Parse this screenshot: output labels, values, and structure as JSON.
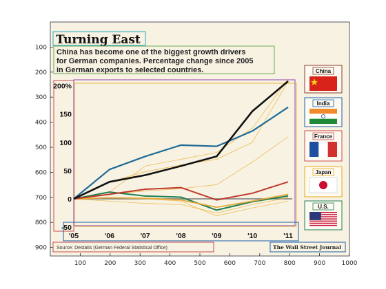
{
  "title": "Turning East",
  "subtitle_lines": [
    "China has become one of the biggest growth drivers",
    "for German companies. Percentage change since 2005",
    "in German exports to selected countries."
  ],
  "source": "Source: Destatis (German Federal Statistical Office)",
  "credit": "The Wall Street Journal",
  "colors": {
    "background": "#f8f2e3",
    "china": "#111111",
    "india": "#1d6a96",
    "france": "#c0392b",
    "japan": "#e3a93b",
    "us": "#1e7f4e",
    "zero_line": "#777777",
    "annotation_boxes": [
      "#2aa8c4",
      "#6aa84f",
      "#c94c4c",
      "#8e44ad",
      "#e6a817",
      "#1a5fa8"
    ]
  },
  "image_axes": {
    "x_ticks": [
      "100",
      "200",
      "300",
      "400",
      "500",
      "600",
      "700",
      "800",
      "900",
      "1000"
    ],
    "y_ticks": [
      "100",
      "200",
      "300",
      "400",
      "500",
      "600",
      "700",
      "800",
      "900"
    ]
  },
  "legend": [
    {
      "label": "China",
      "flag": "china-flag-icon"
    },
    {
      "label": "India",
      "flag": "india-flag-icon"
    },
    {
      "label": "France",
      "flag": "france-flag-icon"
    },
    {
      "label": "Japan",
      "flag": "japan-flag-icon"
    },
    {
      "label": "U.S.",
      "flag": "us-flag-icon"
    }
  ],
  "chart_data": {
    "type": "line",
    "title": "Turning East",
    "x": [
      "'05",
      "'06",
      "'07",
      "'08",
      "'09",
      "'10",
      "'11"
    ],
    "y_ticks": [
      "200%",
      "150",
      "100",
      "50",
      "0",
      "-50"
    ],
    "ylim": [
      -50,
      210
    ],
    "grid": false,
    "legend_position": "right",
    "series": [
      {
        "name": "China",
        "values": [
          0,
          30,
          42,
          58,
          75,
          155,
          208
        ]
      },
      {
        "name": "India",
        "values": [
          0,
          52,
          75,
          95,
          93,
          120,
          162
        ]
      },
      {
        "name": "France",
        "values": [
          0,
          8,
          17,
          20,
          -2,
          10,
          30
        ]
      },
      {
        "name": "Japan",
        "values": [
          0,
          2,
          1,
          -2,
          -15,
          -4,
          8
        ]
      },
      {
        "name": "U.S.",
        "values": [
          0,
          12,
          5,
          3,
          -20,
          -5,
          5
        ]
      }
    ]
  }
}
